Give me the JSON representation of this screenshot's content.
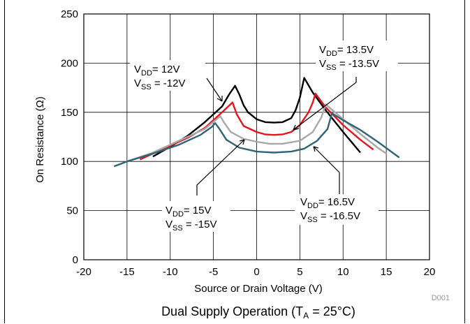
{
  "chart_data": {
    "type": "line",
    "title": "",
    "xlabel": "Source or Drain Voltage (V)",
    "ylabel": "On Resistance (Ω)",
    "xlim": [
      -20,
      20
    ],
    "ylim": [
      0,
      250
    ],
    "xticks": [
      -20,
      -15,
      -10,
      -5,
      0,
      5,
      10,
      15,
      20
    ],
    "yticks": [
      0,
      50,
      100,
      150,
      200,
      250
    ],
    "grid": true,
    "series": [
      {
        "name": "VDD= 12V VSS = -12V",
        "color": "#000000",
        "points": [
          [
            -12,
            105
          ],
          [
            -10,
            115
          ],
          [
            -8,
            126
          ],
          [
            -6,
            140
          ],
          [
            -4,
            156
          ],
          [
            -3.2,
            168
          ],
          [
            -2.5,
            177
          ],
          [
            -2,
            168
          ],
          [
            -1.5,
            157
          ],
          [
            -1,
            150
          ],
          [
            0,
            143
          ],
          [
            1,
            140
          ],
          [
            2,
            139.5
          ],
          [
            3,
            140
          ],
          [
            4,
            144
          ],
          [
            4.5,
            152
          ],
          [
            5,
            165
          ],
          [
            5.5,
            185
          ],
          [
            6.5,
            170
          ],
          [
            8,
            152
          ],
          [
            10,
            130
          ],
          [
            12,
            109
          ]
        ]
      },
      {
        "name": "VDD= 13.5V VSS = -13.5V",
        "color": "#e8141c",
        "points": [
          [
            -13.5,
            102
          ],
          [
            -11,
            112
          ],
          [
            -8,
            124
          ],
          [
            -6,
            134
          ],
          [
            -4,
            150
          ],
          [
            -2.8,
            160
          ],
          [
            -2.3,
            148
          ],
          [
            -1.5,
            136
          ],
          [
            0,
            130
          ],
          [
            1,
            127.5
          ],
          [
            2,
            127
          ],
          [
            3,
            127.5
          ],
          [
            4,
            130
          ],
          [
            5,
            137
          ],
          [
            6,
            150
          ],
          [
            6.5,
            160
          ],
          [
            6.8,
            169
          ],
          [
            8,
            155
          ],
          [
            10,
            137
          ],
          [
            12,
            122
          ],
          [
            13.5,
            112
          ]
        ]
      },
      {
        "name": "",
        "color": "#a8a8a8",
        "points": [
          [
            -15,
            100
          ],
          [
            -12,
            109
          ],
          [
            -9,
            121
          ],
          [
            -6,
            133
          ],
          [
            -4.2,
            146
          ],
          [
            -3.8,
            140
          ],
          [
            -3,
            130
          ],
          [
            -1.5,
            123
          ],
          [
            0,
            120
          ],
          [
            1.5,
            118
          ],
          [
            3,
            118
          ],
          [
            5,
            121
          ],
          [
            6.5,
            130
          ],
          [
            7.5,
            145
          ],
          [
            8,
            158
          ],
          [
            10,
            143
          ],
          [
            12,
            128
          ],
          [
            14,
            114
          ],
          [
            15,
            108
          ]
        ]
      },
      {
        "name": "VDD= 16.5V VSS = -16.5V",
        "color": "#2f6478",
        "points": [
          [
            -16.5,
            95
          ],
          [
            -15,
            100
          ],
          [
            -12,
            108
          ],
          [
            -9,
            117
          ],
          [
            -6.5,
            127
          ],
          [
            -5.2,
            135
          ],
          [
            -4.8,
            139
          ],
          [
            -4.3,
            133
          ],
          [
            -3.5,
            122
          ],
          [
            -2,
            114
          ],
          [
            0,
            110
          ],
          [
            2,
            109
          ],
          [
            4,
            110
          ],
          [
            5.5,
            113
          ],
          [
            7,
            121
          ],
          [
            8.2,
            133
          ],
          [
            8.7,
            149
          ],
          [
            10,
            142
          ],
          [
            12,
            132
          ],
          [
            14,
            120
          ],
          [
            16.5,
            104
          ]
        ]
      }
    ],
    "annotations": [
      {
        "label_main": "V",
        "sub1": "DD",
        "rest1": "= 12V",
        "label_main2": "V",
        "sub2": "SS",
        "rest2": " = -12V"
      },
      {
        "label_main": "V",
        "sub1": "DD",
        "rest1": "= 13.5V",
        "label_main2": "V",
        "sub2": "SS",
        "rest2": " = -13.5V"
      },
      {
        "label_main": "V",
        "sub1": "DD",
        "rest1": "= 15V",
        "label_main2": "V",
        "sub2": "SS",
        "rest2": " = -15V"
      },
      {
        "label_main": "V",
        "sub1": "DD",
        "rest1": "= 16.5V",
        "label_main2": "V",
        "sub2": "SS",
        "rest2": " = -16.5V"
      }
    ],
    "figure_tag": "D001",
    "caption_prefix": "Dual Supply Operation (T",
    "caption_sub": "A",
    "caption_suffix": " = 25°C)"
  }
}
